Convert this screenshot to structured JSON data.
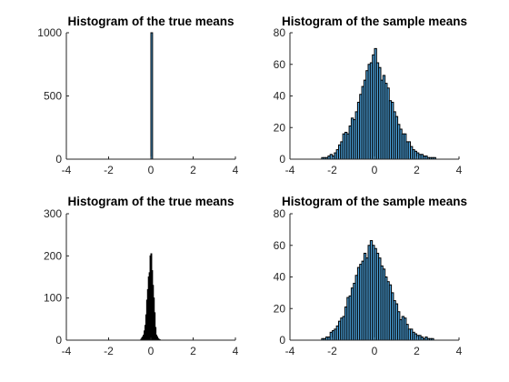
{
  "colors": {
    "bar_fill": "#4ea5df",
    "bar_edge": "#000000",
    "axis": "#262626",
    "background": "#ffffff"
  },
  "chart_data": [
    {
      "type": "bar",
      "title": "Histogram of the true means",
      "xlabel": "",
      "ylabel": "",
      "xlim": [
        -4,
        4
      ],
      "ylim": [
        0,
        1000
      ],
      "xticks": [
        -4,
        -2,
        0,
        2,
        4
      ],
      "yticks": [
        0,
        500,
        1000
      ],
      "grid": false,
      "bin_width": 0.08,
      "bin_centers": [
        0.04
      ],
      "values": [
        1000
      ]
    },
    {
      "type": "bar",
      "title": "Histogram of the sample means",
      "xlabel": "",
      "ylabel": "",
      "xlim": [
        -4,
        4
      ],
      "ylim": [
        0,
        80
      ],
      "xticks": [
        -4,
        -2,
        0,
        2,
        4
      ],
      "yticks": [
        0,
        20,
        40,
        60,
        80
      ],
      "grid": false,
      "bin_width": 0.1,
      "bin_centers": [
        -2.45,
        -2.35,
        -2.25,
        -2.15,
        -2.05,
        -1.95,
        -1.85,
        -1.75,
        -1.65,
        -1.55,
        -1.45,
        -1.35,
        -1.25,
        -1.15,
        -1.05,
        -0.95,
        -0.85,
        -0.75,
        -0.65,
        -0.55,
        -0.45,
        -0.35,
        -0.25,
        -0.15,
        -0.05,
        0.05,
        0.15,
        0.25,
        0.35,
        0.45,
        0.55,
        0.65,
        0.75,
        0.85,
        0.95,
        1.05,
        1.15,
        1.25,
        1.35,
        1.45,
        1.55,
        1.65,
        1.75,
        1.85,
        1.95,
        2.05,
        2.15,
        2.25,
        2.35,
        2.45,
        2.55,
        2.65,
        2.75,
        2.85
      ],
      "values": [
        1,
        1,
        1,
        2,
        3,
        2,
        4,
        6,
        9,
        11,
        16,
        17,
        16,
        21,
        26,
        25,
        30,
        36,
        41,
        46,
        50,
        56,
        60,
        61,
        66,
        70,
        61,
        58,
        50,
        53,
        48,
        45,
        37,
        36,
        30,
        27,
        22,
        19,
        16,
        16,
        11,
        11,
        8,
        6,
        5,
        4,
        3,
        3,
        2,
        2,
        1,
        1,
        1,
        1
      ]
    },
    {
      "type": "bar",
      "title": "Histogram of the true means",
      "xlabel": "",
      "ylabel": "",
      "xlim": [
        -4,
        4
      ],
      "ylim": [
        0,
        300
      ],
      "xticks": [
        -4,
        -2,
        0,
        2,
        4
      ],
      "yticks": [
        0,
        100,
        200,
        300
      ],
      "grid": false,
      "bin_width": 0.04,
      "bin_centers": [
        -0.46,
        -0.42,
        -0.38,
        -0.34,
        -0.3,
        -0.26,
        -0.22,
        -0.18,
        -0.14,
        -0.1,
        -0.06,
        -0.02,
        0.02,
        0.06,
        0.1,
        0.14,
        0.18,
        0.22,
        0.26,
        0.3,
        0.34,
        0.38,
        0.42
      ],
      "values": [
        2,
        5,
        8,
        12,
        22,
        35,
        60,
        95,
        120,
        150,
        160,
        200,
        205,
        165,
        130,
        100,
        65,
        30,
        12,
        8,
        4,
        2,
        1
      ]
    },
    {
      "type": "bar",
      "title": "Histogram of the sample means",
      "xlabel": "",
      "ylabel": "",
      "xlim": [
        -4,
        4
      ],
      "ylim": [
        0,
        80
      ],
      "xticks": [
        -4,
        -2,
        0,
        2,
        4
      ],
      "yticks": [
        0,
        20,
        40,
        60,
        80
      ],
      "grid": false,
      "bin_width": 0.1,
      "bin_centers": [
        -2.45,
        -2.35,
        -2.25,
        -2.15,
        -2.05,
        -1.95,
        -1.85,
        -1.75,
        -1.65,
        -1.55,
        -1.45,
        -1.35,
        -1.25,
        -1.15,
        -1.05,
        -0.95,
        -0.85,
        -0.75,
        -0.65,
        -0.55,
        -0.45,
        -0.35,
        -0.25,
        -0.15,
        -0.05,
        0.05,
        0.15,
        0.25,
        0.35,
        0.45,
        0.55,
        0.65,
        0.75,
        0.85,
        0.95,
        1.05,
        1.15,
        1.25,
        1.35,
        1.45,
        1.55,
        1.65,
        1.75,
        1.85,
        1.95,
        2.05,
        2.15,
        2.25,
        2.35,
        2.45,
        2.55,
        2.65,
        2.75
      ],
      "values": [
        1,
        1,
        2,
        2,
        5,
        6,
        7,
        9,
        12,
        14,
        15,
        21,
        27,
        28,
        33,
        36,
        41,
        46,
        48,
        50,
        55,
        52,
        60,
        63,
        60,
        58,
        55,
        52,
        47,
        45,
        40,
        37,
        35,
        30,
        25,
        23,
        18,
        13,
        15,
        14,
        10,
        7,
        7,
        5,
        4,
        3,
        3,
        2,
        1,
        2,
        1,
        1,
        1
      ]
    }
  ]
}
